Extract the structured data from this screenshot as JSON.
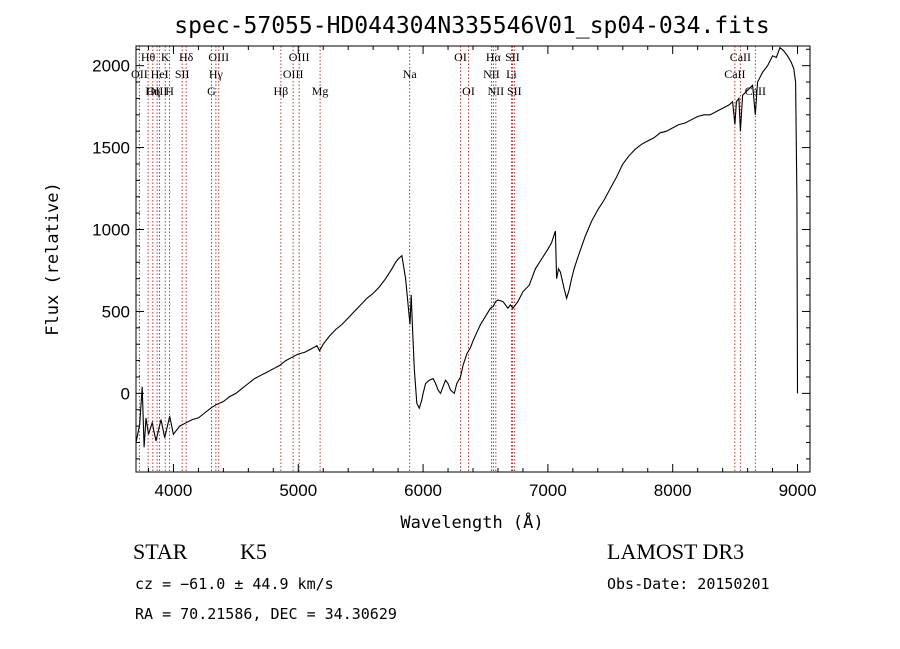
{
  "chart_data": {
    "type": "line",
    "title": "spec-57055-HD044304N335546V01_sp04-034.fits",
    "xlabel": "Wavelength (Å)",
    "ylabel": "Flux (relative)",
    "xlim": [
      3700,
      9100
    ],
    "ylim": [
      -480,
      2120
    ],
    "xticks": [
      4000,
      5000,
      6000,
      7000,
      8000,
      9000
    ],
    "yticks": [
      0,
      500,
      1000,
      1500,
      2000
    ],
    "series": [
      {
        "name": "flux",
        "points": [
          [
            3700,
            -300
          ],
          [
            3730,
            -190
          ],
          [
            3750,
            40
          ],
          [
            3765,
            -330
          ],
          [
            3780,
            -150
          ],
          [
            3800,
            -250
          ],
          [
            3830,
            -180
          ],
          [
            3860,
            -290
          ],
          [
            3900,
            -160
          ],
          [
            3930,
            -270
          ],
          [
            3970,
            -140
          ],
          [
            4000,
            -250
          ],
          [
            4050,
            -200
          ],
          [
            4100,
            -180
          ],
          [
            4150,
            -160
          ],
          [
            4200,
            -150
          ],
          [
            4250,
            -120
          ],
          [
            4300,
            -90
          ],
          [
            4340,
            -70
          ],
          [
            4400,
            -50
          ],
          [
            4450,
            -20
          ],
          [
            4500,
            0
          ],
          [
            4550,
            30
          ],
          [
            4600,
            60
          ],
          [
            4650,
            90
          ],
          [
            4700,
            110
          ],
          [
            4750,
            130
          ],
          [
            4800,
            150
          ],
          [
            4850,
            170
          ],
          [
            4900,
            200
          ],
          [
            4950,
            220
          ],
          [
            5000,
            240
          ],
          [
            5050,
            250
          ],
          [
            5100,
            270
          ],
          [
            5150,
            290
          ],
          [
            5170,
            260
          ],
          [
            5200,
            300
          ],
          [
            5250,
            350
          ],
          [
            5300,
            390
          ],
          [
            5350,
            420
          ],
          [
            5400,
            460
          ],
          [
            5450,
            500
          ],
          [
            5500,
            540
          ],
          [
            5550,
            580
          ],
          [
            5600,
            610
          ],
          [
            5650,
            650
          ],
          [
            5700,
            700
          ],
          [
            5750,
            760
          ],
          [
            5780,
            800
          ],
          [
            5800,
            820
          ],
          [
            5830,
            840
          ],
          [
            5860,
            700
          ],
          [
            5880,
            540
          ],
          [
            5895,
            420
          ],
          [
            5905,
            600
          ],
          [
            5915,
            400
          ],
          [
            5930,
            150
          ],
          [
            5950,
            -60
          ],
          [
            5970,
            -90
          ],
          [
            5990,
            -40
          ],
          [
            6000,
            0
          ],
          [
            6020,
            60
          ],
          [
            6050,
            80
          ],
          [
            6080,
            90
          ],
          [
            6100,
            60
          ],
          [
            6120,
            20
          ],
          [
            6140,
            0
          ],
          [
            6160,
            40
          ],
          [
            6180,
            80
          ],
          [
            6200,
            60
          ],
          [
            6220,
            20
          ],
          [
            6250,
            0
          ],
          [
            6270,
            60
          ],
          [
            6300,
            100
          ],
          [
            6320,
            170
          ],
          [
            6350,
            240
          ],
          [
            6380,
            280
          ],
          [
            6400,
            320
          ],
          [
            6430,
            370
          ],
          [
            6460,
            420
          ],
          [
            6500,
            470
          ],
          [
            6540,
            520
          ],
          [
            6563,
            530
          ],
          [
            6580,
            560
          ],
          [
            6600,
            570
          ],
          [
            6640,
            560
          ],
          [
            6680,
            520
          ],
          [
            6700,
            540
          ],
          [
            6720,
            520
          ],
          [
            6760,
            560
          ],
          [
            6800,
            620
          ],
          [
            6850,
            660
          ],
          [
            6900,
            760
          ],
          [
            6950,
            820
          ],
          [
            7000,
            880
          ],
          [
            7030,
            920
          ],
          [
            7060,
            990
          ],
          [
            7070,
            700
          ],
          [
            7085,
            760
          ],
          [
            7100,
            740
          ],
          [
            7130,
            640
          ],
          [
            7150,
            580
          ],
          [
            7170,
            630
          ],
          [
            7190,
            700
          ],
          [
            7210,
            760
          ],
          [
            7240,
            830
          ],
          [
            7300,
            960
          ],
          [
            7350,
            1050
          ],
          [
            7400,
            1120
          ],
          [
            7450,
            1180
          ],
          [
            7500,
            1250
          ],
          [
            7550,
            1320
          ],
          [
            7600,
            1400
          ],
          [
            7650,
            1450
          ],
          [
            7700,
            1490
          ],
          [
            7750,
            1520
          ],
          [
            7800,
            1540
          ],
          [
            7850,
            1560
          ],
          [
            7900,
            1590
          ],
          [
            7950,
            1600
          ],
          [
            8000,
            1620
          ],
          [
            8050,
            1640
          ],
          [
            8100,
            1650
          ],
          [
            8150,
            1670
          ],
          [
            8200,
            1690
          ],
          [
            8250,
            1700
          ],
          [
            8300,
            1700
          ],
          [
            8350,
            1720
          ],
          [
            8400,
            1740
          ],
          [
            8450,
            1760
          ],
          [
            8480,
            1780
          ],
          [
            8498,
            1640
          ],
          [
            8510,
            1780
          ],
          [
            8530,
            1800
          ],
          [
            8542,
            1600
          ],
          [
            8560,
            1820
          ],
          [
            8600,
            1850
          ],
          [
            8640,
            1880
          ],
          [
            8662,
            1700
          ],
          [
            8680,
            1900
          ],
          [
            8720,
            1960
          ],
          [
            8760,
            2000
          ],
          [
            8800,
            2060
          ],
          [
            8830,
            2050
          ],
          [
            8860,
            2110
          ],
          [
            8890,
            2090
          ],
          [
            8920,
            2060
          ],
          [
            8950,
            2020
          ],
          [
            8970,
            1980
          ],
          [
            8985,
            1900
          ],
          [
            8995,
            1200
          ],
          [
            9000,
            0
          ]
        ]
      }
    ],
    "spectral_lines": [
      {
        "label": "Hθ",
        "wavelength": 3797,
        "row": 1
      },
      {
        "label": "OII",
        "wavelength": 3727,
        "row": 2
      },
      {
        "label": "OIII",
        "wavelength": 3869,
        "row": 3
      },
      {
        "label": "K",
        "wavelength": 3934,
        "row": 1
      },
      {
        "label": "HeI",
        "wavelength": 3889,
        "row": 2
      },
      {
        "label": "Hη",
        "wavelength": 3835,
        "row": 3
      },
      {
        "label": "Hδ",
        "wavelength": 4102,
        "row": 1
      },
      {
        "label": "SII",
        "wavelength": 4070,
        "row": 2
      },
      {
        "label": "H",
        "wavelength": 3969,
        "row": 3
      },
      {
        "label": "OIII",
        "wavelength": 4363,
        "row": 1
      },
      {
        "label": "Hγ",
        "wavelength": 4340,
        "row": 2
      },
      {
        "label": "G",
        "wavelength": 4305,
        "row": 3
      },
      {
        "label": "OIII",
        "wavelength": 5007,
        "row": 1
      },
      {
        "label": "OIII",
        "wavelength": 4959,
        "row": 2
      },
      {
        "label": "Hβ",
        "wavelength": 4861,
        "row": 3
      },
      {
        "label": "Mg",
        "wavelength": 5175,
        "row": 3
      },
      {
        "label": "Na",
        "wavelength": 5893,
        "row": 2
      },
      {
        "label": "OI",
        "wavelength": 6300,
        "row": 1
      },
      {
        "label": "OI",
        "wavelength": 6364,
        "row": 3
      },
      {
        "label": "Hα",
        "wavelength": 6563,
        "row": 1
      },
      {
        "label": "SII",
        "wavelength": 6716,
        "row": 1
      },
      {
        "label": "NII",
        "wavelength": 6548,
        "row": 2
      },
      {
        "label": "Li",
        "wavelength": 6708,
        "row": 2
      },
      {
        "label": "NII",
        "wavelength": 6583,
        "row": 3
      },
      {
        "label": "SII",
        "wavelength": 6731,
        "row": 3
      },
      {
        "label": "CaII",
        "wavelength": 8542,
        "row": 1
      },
      {
        "label": "CaII",
        "wavelength": 8498,
        "row": 2
      },
      {
        "label": "CaII",
        "wavelength": 8662,
        "row": 3
      }
    ]
  },
  "info": {
    "object_class": "STAR",
    "subclass": "K5",
    "survey": "LAMOST DR3",
    "redshift": "cz = −61.0 ± 44.9 km/s",
    "obs_date": "Obs-Date: 20150201",
    "coords": "RA =  70.21586, DEC =  34.30629"
  },
  "colors": {
    "spectrum": "#000000",
    "line_marker": "#b22222",
    "background": "#ffffff"
  }
}
